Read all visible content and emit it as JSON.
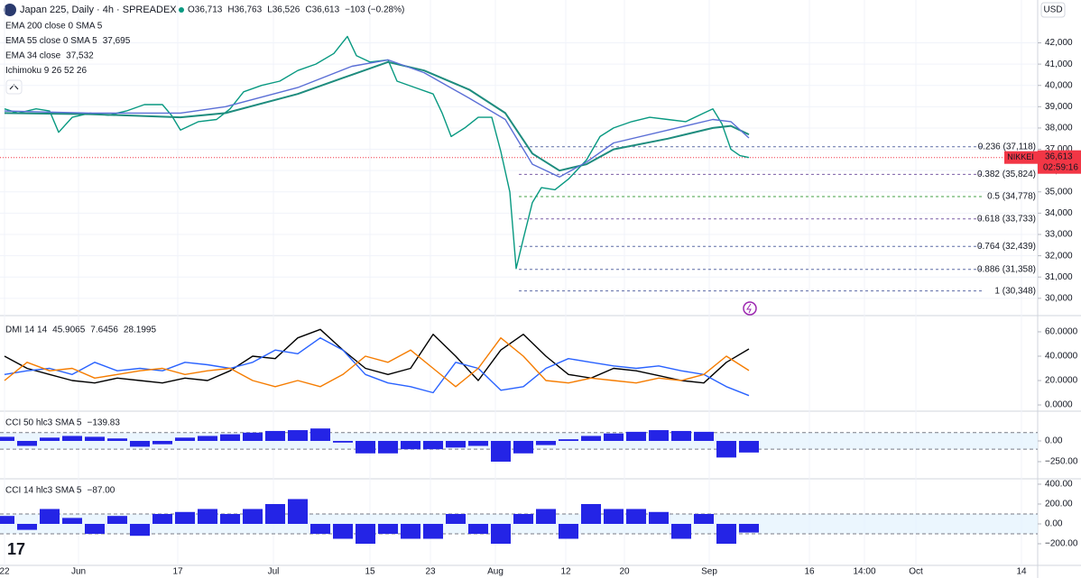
{
  "currency": "USD",
  "chart_data": [
    {
      "type": "line",
      "title": "Japan 225, Daily · 4h · SPREADEX",
      "header_values": [
        "O36,713",
        "H36,763",
        "L36,526",
        "C36,613",
        "−103 (−0.28%)"
      ],
      "hidden_indicators": [
        "EMA 200 close 0 SMA 5",
        "Ichimoku 9 26 52 26"
      ],
      "xlim": [
        0,
        115
      ],
      "xticks": [
        {
          "value": 0.5,
          "label": "22"
        },
        {
          "value": 8.7,
          "label": "Jun"
        },
        {
          "value": 19.7,
          "label": "17"
        },
        {
          "value": 30.3,
          "label": "Jul"
        },
        {
          "value": 41,
          "label": "15"
        },
        {
          "value": 47.7,
          "label": "23"
        },
        {
          "value": 54.9,
          "label": "Aug"
        },
        {
          "value": 62.7,
          "label": "12"
        },
        {
          "value": 69.2,
          "label": "20"
        },
        {
          "value": 78.6,
          "label": "Sep"
        },
        {
          "value": 89.7,
          "label": "16"
        },
        {
          "value": 95.8,
          "label": "14:00"
        },
        {
          "value": 101.5,
          "label": "Oct"
        },
        {
          "value": 113.2,
          "label": "14"
        }
      ],
      "ylim": [
        29400,
        43800
      ],
      "yticks": [
        {
          "value": 30000,
          "label": "30,000"
        },
        {
          "value": 31000,
          "label": "31,000"
        },
        {
          "value": 32000,
          "label": "32,000"
        },
        {
          "value": 33000,
          "label": "33,000"
        },
        {
          "value": 34000,
          "label": "34,000"
        },
        {
          "value": 35000,
          "label": "35,000"
        },
        {
          "value": 36000,
          "label": "36,000"
        },
        {
          "value": 37000,
          "label": "37,000"
        },
        {
          "value": 38000,
          "label": "38,000"
        },
        {
          "value": 39000,
          "label": "39,000"
        },
        {
          "value": 40000,
          "label": "40,000"
        },
        {
          "value": 41000,
          "label": "41,000"
        },
        {
          "value": 42000,
          "label": "42,000"
        }
      ],
      "grid": true,
      "series": [
        {
          "color": "#089981",
          "x": [
            0.5,
            2,
            4,
            5.5,
            6.5,
            8,
            10,
            12,
            14,
            16,
            18,
            19,
            20,
            22,
            24,
            25.5,
            27,
            29,
            31,
            33,
            35,
            37,
            38.5,
            39.5,
            41,
            43,
            44,
            46,
            48,
            49,
            50,
            51.5,
            53,
            54.5,
            55.5,
            56.5,
            57.2,
            58,
            59,
            60,
            61.5,
            63,
            65,
            66.5,
            68,
            70,
            72,
            74,
            76,
            78,
            79,
            80,
            81,
            82,
            83
          ],
          "values": [
            38900,
            38700,
            38900,
            38800,
            37800,
            38500,
            38700,
            38600,
            38800,
            39100,
            39100,
            38600,
            37900,
            38300,
            38400,
            38900,
            39700,
            40000,
            40200,
            40700,
            41000,
            41500,
            42300,
            41400,
            41100,
            41200,
            40200,
            39900,
            39600,
            38700,
            37600,
            38000,
            38500,
            38500,
            36900,
            35000,
            31400,
            32800,
            34500,
            35200,
            35100,
            35600,
            36500,
            37600,
            38000,
            38300,
            38500,
            38400,
            38300,
            38700,
            38900,
            38200,
            37000,
            36700,
            36613
          ]
        },
        {
          "name": "EMA 55 close 0 SMA 5",
          "legend_value": "37,695",
          "color": "#1e8c7e",
          "x": [
            0.5,
            10,
            20,
            25,
            33,
            39,
            43,
            47,
            52,
            56,
            59,
            62,
            65,
            68,
            74,
            79,
            81,
            83
          ],
          "values": [
            38700,
            38650,
            38500,
            38700,
            39600,
            40500,
            41100,
            40700,
            39800,
            38700,
            36800,
            36000,
            36300,
            37000,
            37500,
            38000,
            38100,
            37695
          ]
        },
        {
          "name": "EMA 34 close",
          "legend_value": "37,532",
          "color": "#5b6fd6",
          "x": [
            0.5,
            10,
            20,
            25,
            33,
            39,
            43,
            47,
            52,
            56,
            59,
            62,
            65,
            68,
            74,
            79,
            81,
            83
          ],
          "values": [
            38800,
            38700,
            38700,
            39000,
            39900,
            40900,
            41200,
            40600,
            39400,
            38400,
            36300,
            35700,
            36400,
            37300,
            37900,
            38400,
            38300,
            37532
          ]
        }
      ],
      "levels_start": 57.5,
      "levels": [
        {
          "value": 37118,
          "label": "0.236 (37,118)",
          "color": "#5d6ba6"
        },
        {
          "value": 35824,
          "label": "0.382 (35,824)",
          "color": "#7b5ea7"
        },
        {
          "value": 34778,
          "label": "0.5 (34,778)",
          "color": "#43a047"
        },
        {
          "value": 33733,
          "label": "0.618 (33,733)",
          "color": "#7b5ea7"
        },
        {
          "value": 32439,
          "label": "0.764 (32,439)",
          "color": "#5d6ba6"
        },
        {
          "value": 31358,
          "label": "0.886 (31,358)",
          "color": "#5d6ba6"
        },
        {
          "value": 30348,
          "label": "1 (30,348)",
          "color": "#5d6ba6"
        }
      ],
      "price_tag": {
        "symbol": "NIKKEI",
        "value": 36613,
        "label": "36,613",
        "countdown": "02:59:16",
        "color": "#f23645"
      }
    },
    {
      "type": "line",
      "title": "DMI 14 14",
      "ylim": [
        -4.4,
        69.6
      ],
      "yticks": [
        {
          "value": 0,
          "label": "0.0000"
        },
        {
          "value": 20,
          "label": "20.0000"
        },
        {
          "value": 40,
          "label": "40.0000"
        },
        {
          "value": 60,
          "label": "60.0000"
        }
      ],
      "x": [
        0.5,
        3,
        5.5,
        8,
        10.5,
        13,
        15.5,
        18,
        20.5,
        23,
        25.5,
        28,
        30.5,
        33,
        35.5,
        38,
        40.5,
        43,
        45.5,
        48,
        50.5,
        53,
        55.5,
        58,
        60.5,
        63,
        65.5,
        68,
        70.5,
        73,
        75.5,
        78,
        80.5,
        83
      ],
      "series": [
        {
          "legend_value": "45.9065",
          "color": "#000000",
          "values": [
            40,
            30,
            25,
            20,
            18,
            22,
            20,
            18,
            22,
            20,
            28,
            40,
            38,
            55,
            62,
            45,
            30,
            25,
            30,
            58,
            40,
            20,
            45,
            58,
            40,
            25,
            22,
            30,
            28,
            24,
            20,
            18,
            35,
            45.9065
          ]
        },
        {
          "legend_value": "7.6456",
          "color": "#2962ff",
          "values": [
            25,
            28,
            30,
            25,
            35,
            28,
            30,
            28,
            35,
            33,
            30,
            35,
            45,
            42,
            55,
            45,
            25,
            18,
            15,
            10,
            35,
            30,
            12,
            15,
            30,
            38,
            35,
            32,
            30,
            32,
            28,
            25,
            15,
            7.6456
          ]
        },
        {
          "legend_value": "28.1995",
          "color": "#f57c00",
          "values": [
            20,
            35,
            28,
            30,
            22,
            25,
            28,
            30,
            25,
            28,
            30,
            20,
            15,
            20,
            15,
            25,
            40,
            35,
            45,
            30,
            15,
            30,
            55,
            40,
            20,
            18,
            22,
            20,
            18,
            22,
            20,
            25,
            40,
            28.1995
          ]
        }
      ]
    },
    {
      "type": "bar",
      "title": "CCI 50 hlc3 SMA 5",
      "legend_value": "−139.83",
      "color": "#2424e6",
      "band": [
        -100,
        100
      ],
      "ylim": [
        -446,
        337
      ],
      "yticks": [
        {
          "value": -250,
          "label": "−250.00"
        },
        {
          "value": 0,
          "label": "0.00"
        }
      ],
      "x": [
        0.5,
        3,
        5.5,
        8,
        10.5,
        13,
        15.5,
        18,
        20.5,
        23,
        25.5,
        28,
        30.5,
        33,
        35.5,
        38,
        40.5,
        43,
        45.5,
        48,
        50.5,
        53,
        55.5,
        58,
        60.5,
        63,
        65.5,
        68,
        70.5,
        73,
        75.5,
        78,
        80.5,
        83
      ],
      "values": [
        50,
        -60,
        40,
        60,
        50,
        30,
        -70,
        -40,
        40,
        60,
        80,
        100,
        120,
        130,
        150,
        -20,
        -150,
        -150,
        -100,
        -100,
        -80,
        -60,
        -250,
        -150,
        -50,
        20,
        60,
        90,
        110,
        130,
        120,
        110,
        -200,
        -139.83
      ]
    },
    {
      "type": "bar",
      "title": "CCI 14 hlc3 SMA 5",
      "legend_value": "−87.00",
      "color": "#2424e6",
      "band": [
        -100,
        100
      ],
      "ylim": [
        -418,
        436
      ],
      "yticks": [
        {
          "value": -200,
          "label": "−200.00"
        },
        {
          "value": 0,
          "label": "0.00"
        },
        {
          "value": 200,
          "label": "200.00"
        },
        {
          "value": 400,
          "label": "400.00"
        }
      ],
      "x": [
        0.5,
        3,
        5.5,
        8,
        10.5,
        13,
        15.5,
        18,
        20.5,
        23,
        25.5,
        28,
        30.5,
        33,
        35.5,
        38,
        40.5,
        43,
        45.5,
        48,
        50.5,
        53,
        55.5,
        58,
        60.5,
        63,
        65.5,
        68,
        70.5,
        73,
        75.5,
        78,
        80.5,
        83
      ],
      "values": [
        80,
        -60,
        150,
        60,
        -100,
        80,
        -120,
        100,
        120,
        150,
        100,
        150,
        200,
        250,
        -100,
        -150,
        -200,
        -100,
        -150,
        -150,
        100,
        -100,
        -200,
        100,
        150,
        -150,
        200,
        150,
        150,
        120,
        -150,
        100,
        -200,
        -87
      ]
    }
  ]
}
